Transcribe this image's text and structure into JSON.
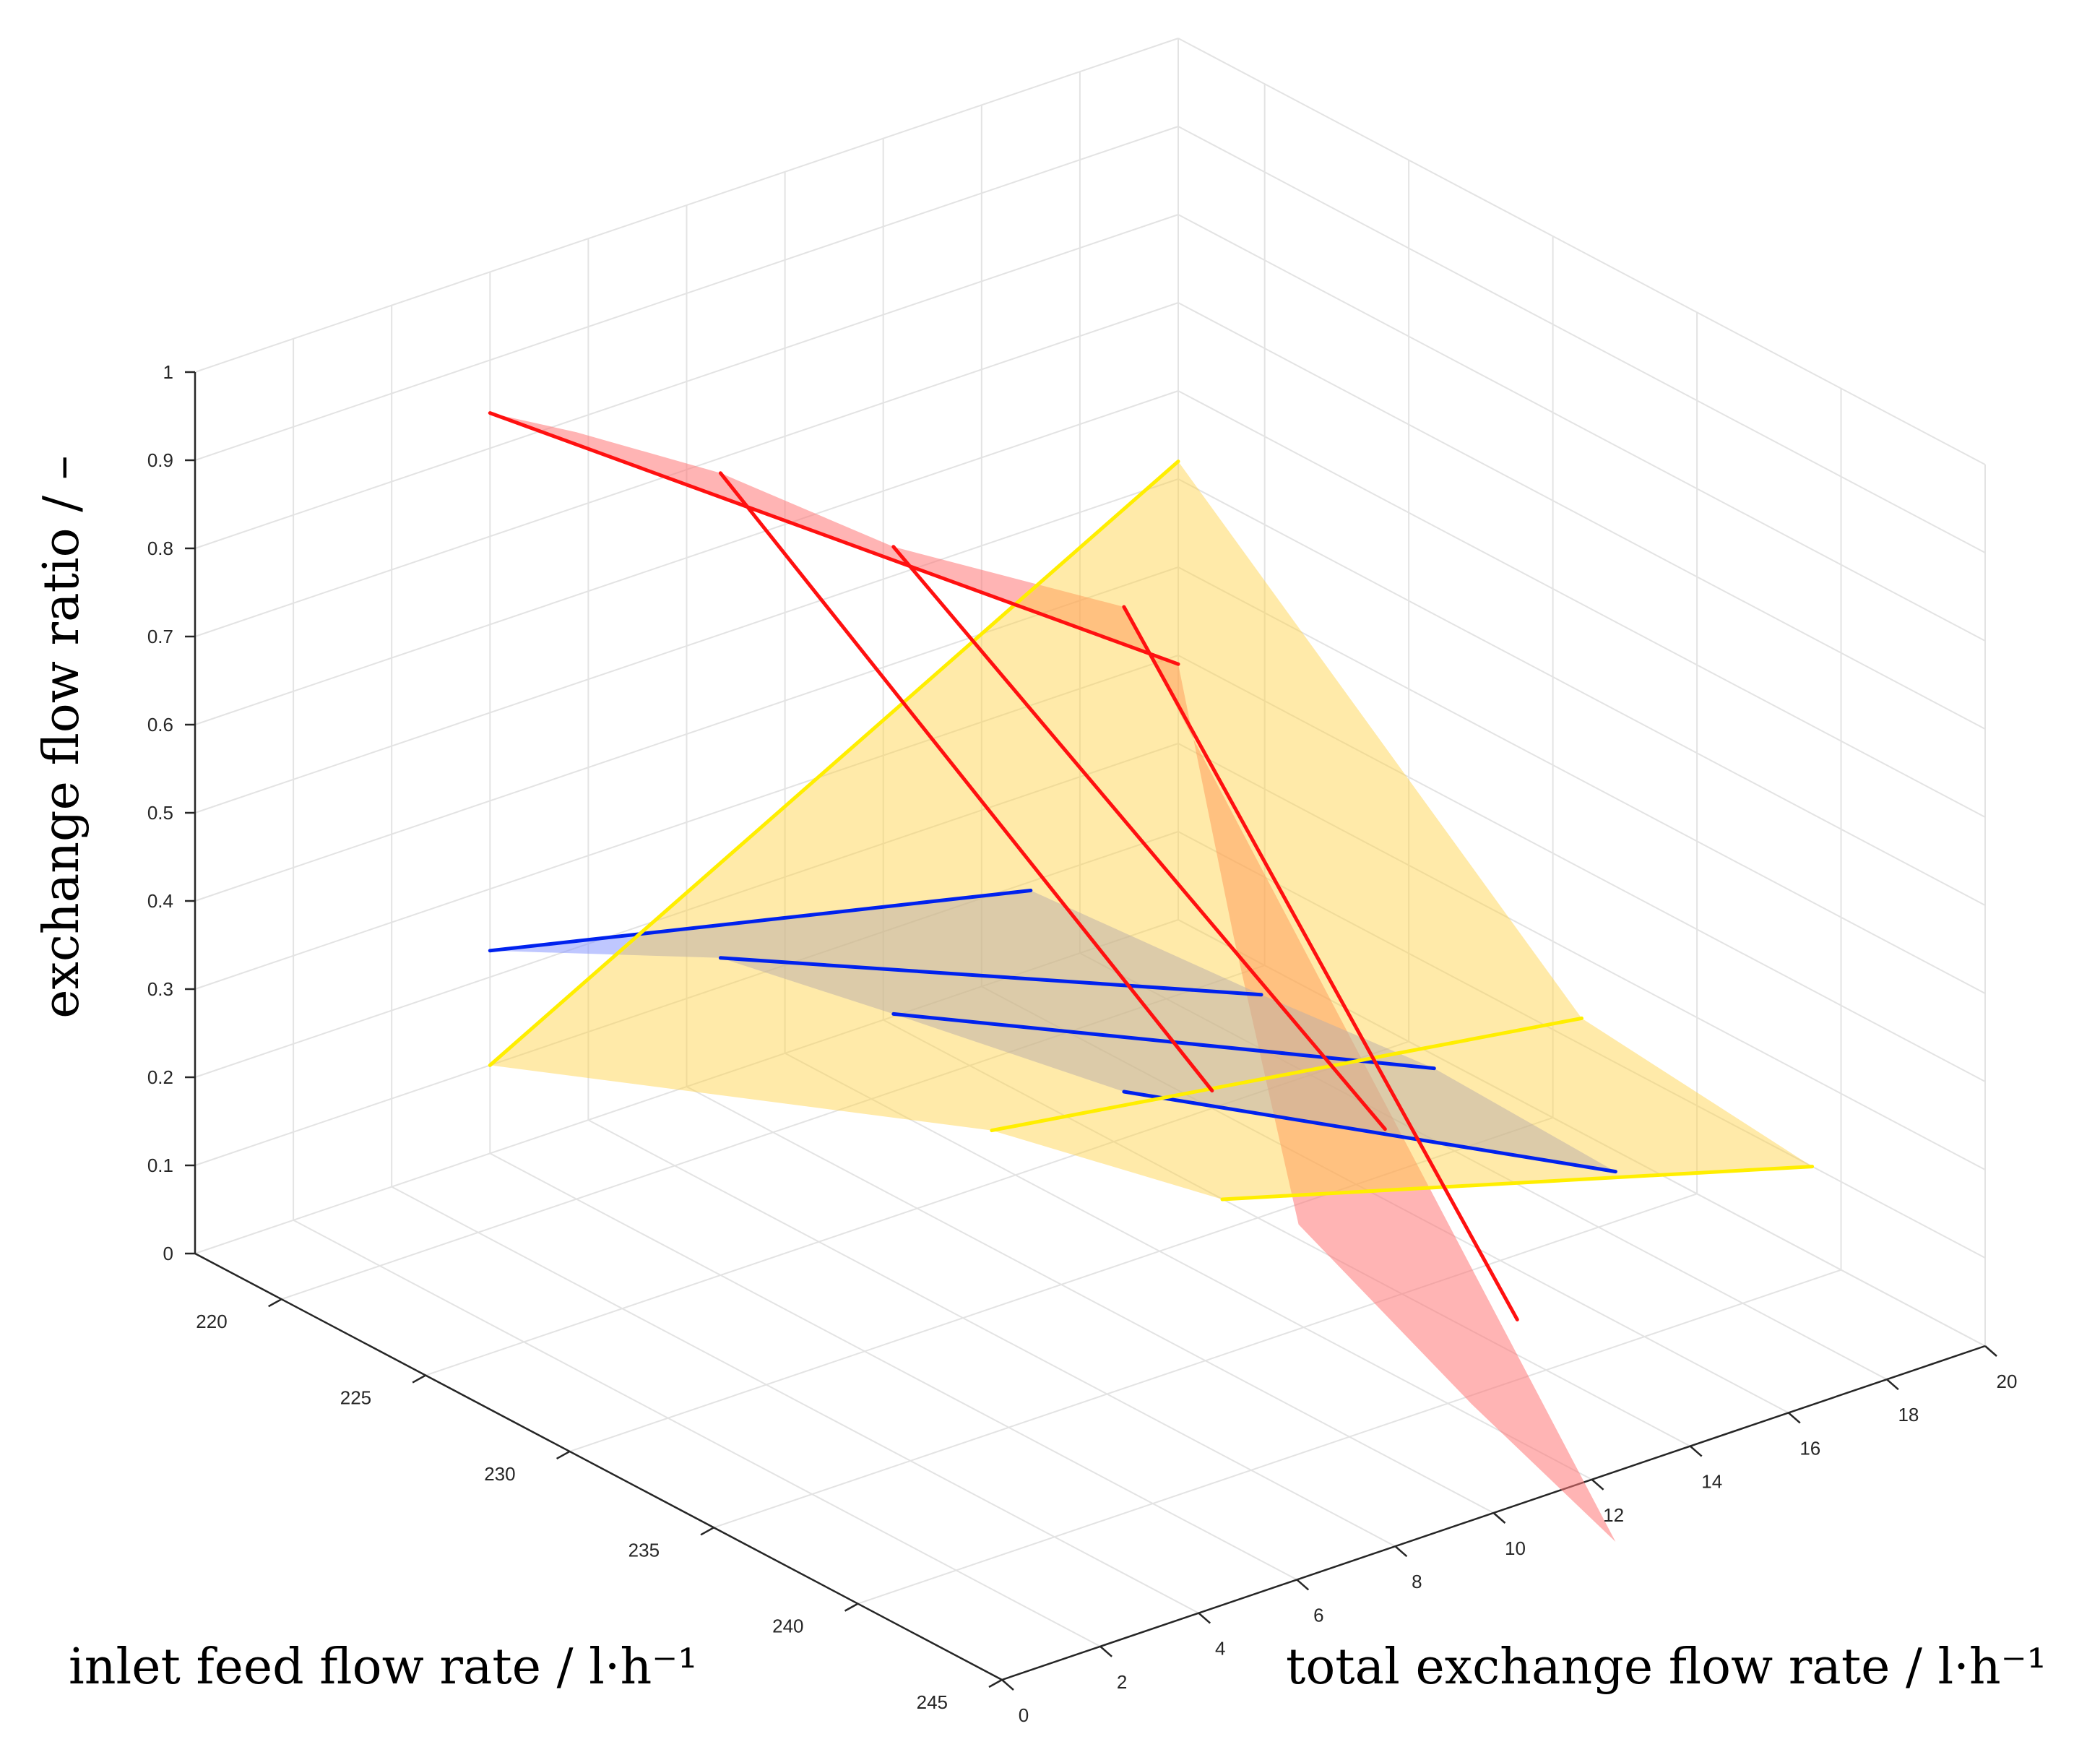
{
  "chart_data": {
    "type": "surface3d",
    "title": "",
    "xlabel": "total exchange flow rate /  l·h⁻¹",
    "ylabel": "inlet feed flow rate /  l·h⁻¹",
    "zlabel": "exchange flow ratio /  –",
    "xlim": [
      0,
      20
    ],
    "ylim": [
      217,
      245
    ],
    "zlim": [
      0,
      1
    ],
    "x_ticks": [
      "0",
      "2",
      "4",
      "6",
      "8",
      "10",
      "12",
      "14",
      "16",
      "18",
      "20"
    ],
    "y_ticks": [
      "220",
      "225",
      "230",
      "235",
      "240",
      "245"
    ],
    "z_ticks": [
      "0",
      "0.1",
      "0.2",
      "0.3",
      "0.4",
      "0.5",
      "0.6",
      "0.7",
      "0.8",
      "0.9",
      "1"
    ],
    "grid": true,
    "colors": {
      "red": "#ff1010",
      "red_surface": "#ff7777",
      "blue": "#0022ee",
      "blue_surface": "#8090ff",
      "yellow": "#ffee00",
      "yellow_surface": "#ffd040",
      "grid": "#e3e3e3",
      "axis": "#262626"
    },
    "series": [
      {
        "name": "red",
        "curves": [
          {
            "y": 217,
            "points": [
              [
                6,
                0.84
              ],
              [
                20,
                0.29
              ]
            ]
          },
          {
            "y": 225,
            "points": [
              [
                6,
                0.91
              ],
              [
                16,
                0.02
              ]
            ]
          },
          {
            "y": 231,
            "points": [
              [
                6,
                0.93
              ],
              [
                16,
                0.08
              ]
            ]
          },
          {
            "y": 239,
            "points": [
              [
                6,
                1.0
              ],
              [
                14,
                0.04
              ]
            ]
          }
        ],
        "edge_low_x": [
          [
            217,
            0.84
          ],
          [
            220,
            0.87
          ],
          [
            225,
            0.91
          ],
          [
            231,
            0.93
          ],
          [
            239,
            1.0
          ]
        ],
        "edge_high_x": [
          [
            217,
            0.29
          ],
          [
            222,
            0.1
          ],
          [
            228,
            -0.08
          ],
          [
            234,
            -0.18
          ],
          [
            239,
            -0.25
          ]
        ]
      },
      {
        "name": "blue",
        "curves": [
          {
            "y": 217,
            "points": [
              [
                6,
                0.23
              ],
              [
                17,
                0.09
              ]
            ]
          },
          {
            "y": 225,
            "points": [
              [
                6,
                0.36
              ],
              [
                17,
                0.11
              ]
            ]
          },
          {
            "y": 231,
            "points": [
              [
                6,
                0.4
              ],
              [
                17,
                0.13
              ]
            ]
          },
          {
            "y": 239,
            "points": [
              [
                6,
                0.45
              ],
              [
                16,
                0.17
              ]
            ]
          }
        ]
      },
      {
        "name": "yellow",
        "curves": [
          {
            "y": 217,
            "points": [
              [
                6,
                0.1
              ],
              [
                20,
                0.52
              ]
            ]
          },
          {
            "y": 231,
            "points": [
              [
                8,
                0.23
              ],
              [
                20,
                0.13
              ]
            ]
          },
          {
            "y": 239,
            "points": [
              [
                8,
                0.29
              ],
              [
                20,
                0.1
              ]
            ]
          }
        ]
      }
    ]
  }
}
